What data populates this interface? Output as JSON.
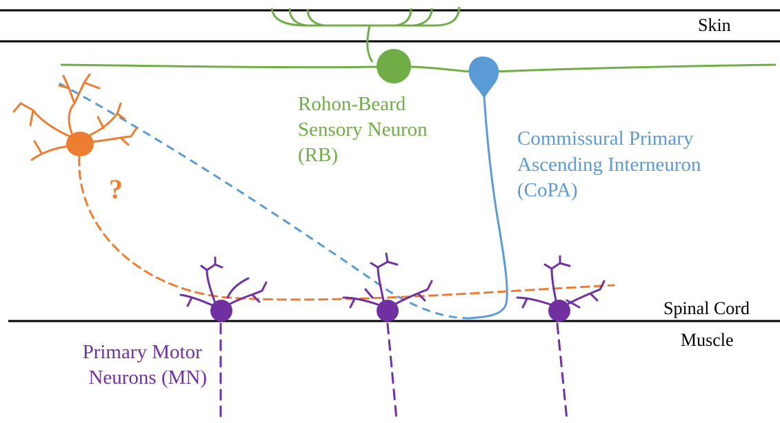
{
  "labels": {
    "skin": "Skin",
    "spinal_cord": "Spinal Cord",
    "muscle": "Muscle",
    "rb": [
      "Rohon-Beard",
      "Sensory Neuron",
      "(RB)"
    ],
    "copa": [
      "Commissural Primary",
      "Ascending Interneuron",
      "(CoPA)"
    ],
    "mn": [
      "Primary Motor",
      "Neurons (MN)"
    ],
    "unknown": "?"
  },
  "colors": {
    "boundary": "#000000",
    "rb": "#70ad47",
    "copa": "#5b9bd5",
    "unknown_neuron": "#ed7d31",
    "mn": "#7030a0",
    "text": "#000000"
  }
}
